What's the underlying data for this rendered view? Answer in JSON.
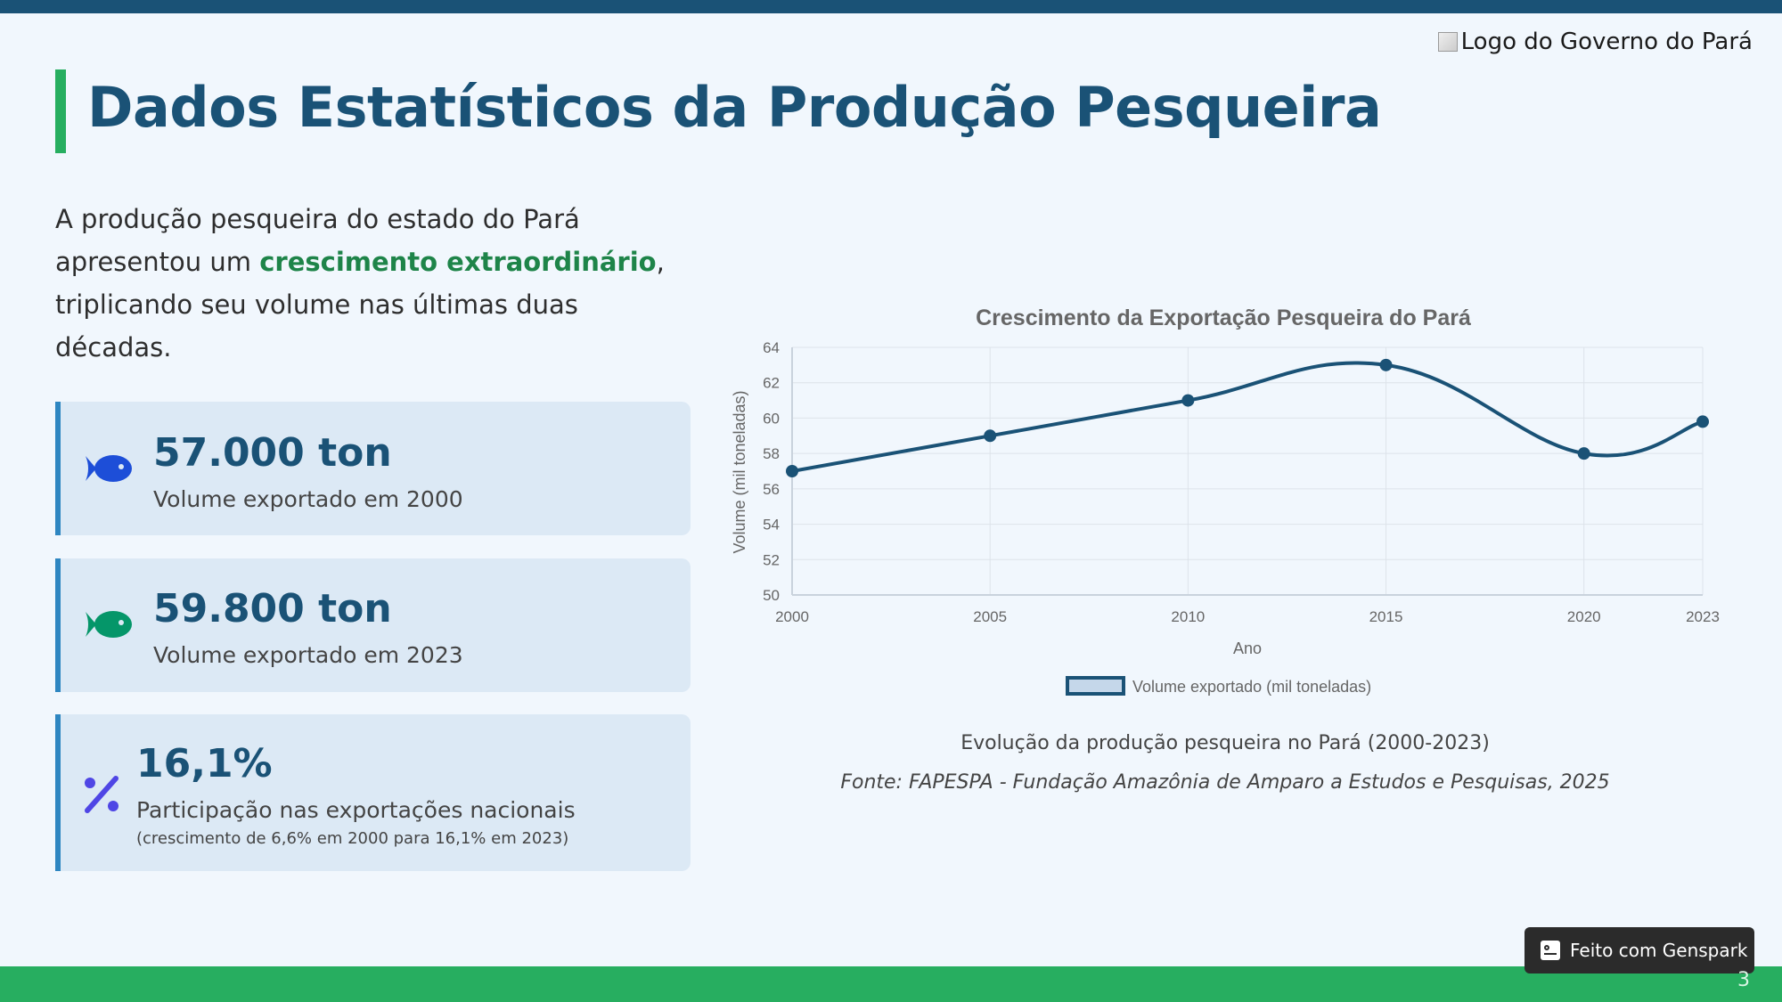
{
  "logo": {
    "alt_text": "Logo do Governo do Pará"
  },
  "title": "Dados Estatísticos da Produção Pesqueira",
  "intro": {
    "part1": "A produção pesqueira do estado do Pará apresentou um ",
    "highlight": "crescimento extraordinário",
    "part2": ", triplicando seu volume nas últimas duas décadas."
  },
  "stats": [
    {
      "icon": "fish-icon",
      "icon_color": "#1d4ed8",
      "value": "57.000 ton",
      "label": "Volume exportado em 2000"
    },
    {
      "icon": "fish-icon",
      "icon_color": "#059669",
      "value": "59.800 ton",
      "label": "Volume exportado em 2023"
    },
    {
      "icon": "percent-icon",
      "icon_color": "#4f46e5",
      "value": "16,1%",
      "label": "Participação nas exportações nacionais",
      "sublabel": "(crescimento de 6,6% em 2000 para 16,1% em 2023)"
    }
  ],
  "chart_data": {
    "type": "line",
    "title": "Crescimento da Exportação Pesqueira do Pará",
    "xlabel": "Ano",
    "ylabel": "Volume (mil toneladas)",
    "x": [
      2000,
      2005,
      2010,
      2015,
      2020,
      2023
    ],
    "series": [
      {
        "name": "Volume exportado (mil toneladas)",
        "values": [
          57,
          59,
          61,
          63,
          58,
          59.8
        ]
      }
    ],
    "xlim": [
      2000,
      2023
    ],
    "ylim": [
      50,
      64
    ],
    "yticks": [
      50,
      52,
      54,
      56,
      58,
      60,
      62,
      64
    ],
    "grid": true,
    "legend": "bottom",
    "colors": {
      "line": "#1a5276",
      "legend_fill": "#c5d7ea"
    }
  },
  "caption": "Evolução da produção pesqueira no Pará (2000-2023)",
  "source": "Fonte: FAPESPA - Fundação Amazônia de Amparo a Estudos e Pesquisas, 2025",
  "badge": {
    "label": "Feito com Genspark"
  },
  "page_number": "3",
  "colors": {
    "primary": "#1a5276",
    "accent_green": "#27ae60",
    "card_bg": "#dce9f5",
    "card_border": "#2e86c1"
  }
}
